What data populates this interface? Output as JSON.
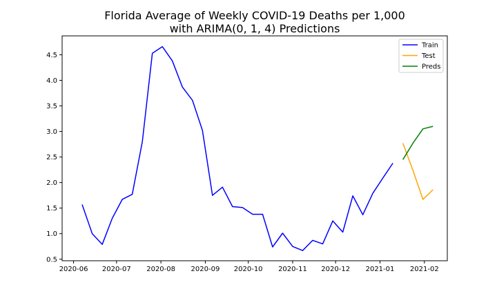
{
  "chart_data": {
    "type": "line",
    "title_lines": [
      "Florida Average of Weekly COVID-19 Deaths per 1,000",
      "with ARIMA(0, 1, 4) Predictions"
    ],
    "xlabel": "",
    "ylabel": "",
    "x_tick_labels": [
      "2020-06",
      "2020-07",
      "2020-08",
      "2020-09",
      "2020-10",
      "2020-11",
      "2020-12",
      "2021-01",
      "2021-02"
    ],
    "x_tick_dates": [
      "2020-06-01",
      "2020-07-01",
      "2020-08-01",
      "2020-09-01",
      "2020-10-01",
      "2020-11-01",
      "2020-12-01",
      "2021-01-01",
      "2021-02-01"
    ],
    "y_ticks": [
      0.5,
      1.0,
      1.5,
      2.0,
      2.5,
      3.0,
      3.5,
      4.0,
      4.5
    ],
    "y_tick_labels": [
      "0.5",
      "1.0",
      "1.5",
      "2.0",
      "2.5",
      "3.0",
      "3.5",
      "4.0",
      "4.5"
    ],
    "xlim": [
      "2020-05-24",
      "2021-02-17"
    ],
    "ylim": [
      0.47,
      4.87
    ],
    "grid": false,
    "legend_position": "top-right",
    "series": [
      {
        "name": "Train",
        "color": "#0000ff",
        "x": [
          "2020-06-07",
          "2020-06-14",
          "2020-06-21",
          "2020-06-28",
          "2020-07-05",
          "2020-07-12",
          "2020-07-19",
          "2020-07-26",
          "2020-08-02",
          "2020-08-09",
          "2020-08-16",
          "2020-08-23",
          "2020-08-30",
          "2020-09-06",
          "2020-09-13",
          "2020-09-20",
          "2020-09-27",
          "2020-10-04",
          "2020-10-11",
          "2020-10-18",
          "2020-10-25",
          "2020-11-01",
          "2020-11-08",
          "2020-11-15",
          "2020-11-22",
          "2020-11-29",
          "2020-12-06",
          "2020-12-13",
          "2020-12-20",
          "2020-12-27",
          "2021-01-03",
          "2021-01-10"
        ],
        "y": [
          1.57,
          1.0,
          0.79,
          1.3,
          1.67,
          1.77,
          2.8,
          4.53,
          4.66,
          4.38,
          3.87,
          3.61,
          3.02,
          1.75,
          1.91,
          1.53,
          1.51,
          1.38,
          1.38,
          0.74,
          1.01,
          0.75,
          0.67,
          0.87,
          0.8,
          1.25,
          1.03,
          1.74,
          1.37,
          1.79,
          2.09,
          2.38
        ]
      },
      {
        "name": "Test",
        "color": "#ffa500",
        "x": [
          "2021-01-17",
          "2021-01-24",
          "2021-01-31",
          "2021-02-07"
        ],
        "y": [
          2.77,
          2.24,
          1.67,
          1.86
        ]
      },
      {
        "name": "Preds",
        "color": "#008000",
        "x": [
          "2021-01-17",
          "2021-01-24",
          "2021-01-31",
          "2021-02-07"
        ],
        "y": [
          2.45,
          2.77,
          3.05,
          3.1
        ]
      }
    ]
  }
}
